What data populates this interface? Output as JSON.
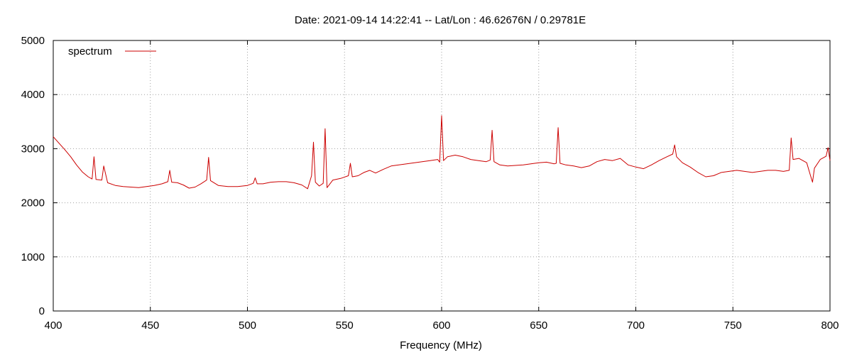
{
  "chart_data": {
    "type": "line",
    "title": "Date: 2021-09-14 14:22:41  --  Lat/Lon : 46.62676N / 0.29781E",
    "xlabel": "Frequency (MHz)",
    "ylabel": "",
    "xlim": [
      400,
      800
    ],
    "ylim": [
      0,
      5000
    ],
    "x_ticks": [
      "400",
      "450",
      "500",
      "550",
      "600",
      "650",
      "700",
      "750",
      "800"
    ],
    "y_ticks": [
      "0",
      "1000",
      "2000",
      "3000",
      "4000",
      "5000"
    ],
    "grid": true,
    "legend_position": "top-left",
    "series_color": "#cc0000",
    "series": [
      {
        "name": "spectrum",
        "x": [
          400,
          403,
          406,
          409,
          412,
          415,
          418,
          420,
          421,
          422,
          425,
          426,
          428,
          432,
          436,
          440,
          444,
          448,
          450,
          452,
          456,
          459,
          460,
          461,
          464,
          467,
          470,
          473,
          476,
          479,
          480,
          481,
          485,
          490,
          495,
          500,
          503,
          504,
          505,
          508,
          512,
          516,
          520,
          524,
          528,
          531,
          533,
          534,
          535,
          537,
          539,
          540,
          541,
          544,
          548,
          552,
          553,
          554,
          557,
          560,
          563,
          566,
          570,
          574,
          578,
          582,
          586,
          590,
          594,
          598,
          599,
          600,
          601,
          603,
          607,
          611,
          615,
          619,
          623,
          625,
          626,
          627,
          630,
          634,
          638,
          642,
          646,
          650,
          654,
          658,
          659,
          660,
          661,
          664,
          668,
          672,
          676,
          680,
          684,
          688,
          692,
          696,
          700,
          704,
          708,
          712,
          716,
          719,
          720,
          721,
          724,
          728,
          732,
          736,
          740,
          744,
          748,
          752,
          756,
          760,
          764,
          768,
          772,
          776,
          779,
          780,
          781,
          784,
          788,
          790,
          791,
          792,
          795,
          798,
          799,
          800
        ],
        "values": [
          3220,
          3100,
          2980,
          2850,
          2700,
          2570,
          2480,
          2440,
          2850,
          2430,
          2420,
          2680,
          2370,
          2320,
          2300,
          2290,
          2280,
          2300,
          2310,
          2320,
          2350,
          2390,
          2600,
          2380,
          2370,
          2330,
          2270,
          2290,
          2350,
          2420,
          2840,
          2410,
          2320,
          2300,
          2300,
          2320,
          2360,
          2460,
          2350,
          2350,
          2380,
          2390,
          2390,
          2370,
          2330,
          2260,
          2500,
          3120,
          2380,
          2310,
          2360,
          3370,
          2280,
          2420,
          2450,
          2500,
          2730,
          2480,
          2500,
          2560,
          2600,
          2550,
          2620,
          2680,
          2700,
          2720,
          2740,
          2760,
          2780,
          2800,
          2750,
          3610,
          2780,
          2850,
          2880,
          2850,
          2800,
          2780,
          2760,
          2790,
          3340,
          2760,
          2700,
          2680,
          2690,
          2700,
          2720,
          2740,
          2750,
          2720,
          2730,
          3390,
          2730,
          2700,
          2680,
          2650,
          2680,
          2760,
          2800,
          2780,
          2820,
          2700,
          2660,
          2630,
          2700,
          2780,
          2850,
          2900,
          3070,
          2850,
          2740,
          2660,
          2560,
          2480,
          2500,
          2560,
          2580,
          2600,
          2580,
          2560,
          2580,
          2600,
          2600,
          2580,
          2600,
          3200,
          2800,
          2820,
          2740,
          2500,
          2380,
          2640,
          2800,
          2860,
          3020,
          2780
        ]
      }
    ]
  }
}
